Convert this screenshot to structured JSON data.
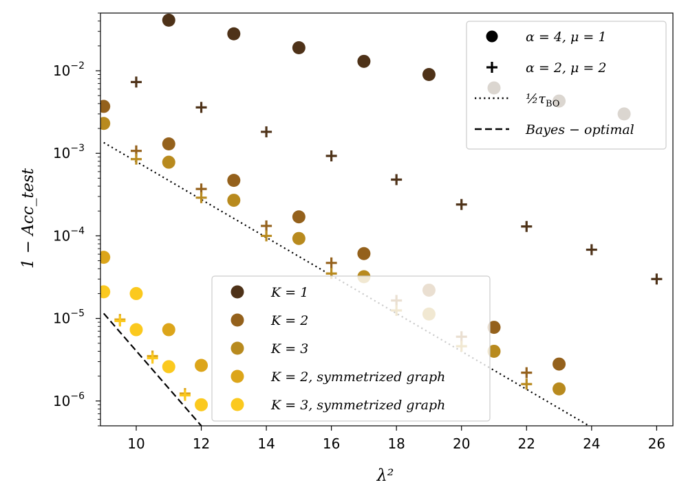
{
  "chart_data": {
    "type": "scatter",
    "title": "",
    "xlabel": "λ²",
    "ylabel": "1 − Acc_test",
    "yscale": "log",
    "xlim": [
      8.9,
      26.5
    ],
    "ylim": [
      5e-07,
      0.05
    ],
    "xticks": [
      10,
      12,
      14,
      16,
      18,
      20,
      22,
      24,
      26
    ],
    "yticks": [
      {
        "value": 1e-06,
        "base": "10",
        "exp": "−6"
      },
      {
        "value": 1e-05,
        "base": "10",
        "exp": "−5"
      },
      {
        "value": 0.0001,
        "base": "10",
        "exp": "−4"
      },
      {
        "value": 0.001,
        "base": "10",
        "exp": "−3"
      },
      {
        "value": 0.01,
        "base": "10",
        "exp": "−2"
      }
    ],
    "colors": {
      "K1": "#4e3218",
      "K2": "#94611c",
      "K3": "#b88a1e",
      "K2sym": "#dca51a",
      "K3sym": "#fbc91e",
      "faded": "#e8dccb",
      "axis": "#000000"
    },
    "series": [
      {
        "name": "K=1, α=4, μ=1",
        "marker": "circle",
        "colorKey": "K1",
        "points": [
          [
            11,
            0.041
          ],
          [
            13,
            0.028
          ],
          [
            15,
            0.019
          ],
          [
            17,
            0.013
          ],
          [
            19,
            0.009
          ],
          [
            21,
            0.0062
          ],
          [
            23,
            0.0043
          ],
          [
            25,
            0.003
          ]
        ]
      },
      {
        "name": "K=1, α=2, μ=2",
        "marker": "plus",
        "colorKey": "K1",
        "points": [
          [
            10,
            0.0073
          ],
          [
            12,
            0.0036
          ],
          [
            14,
            0.00182
          ],
          [
            16,
            0.00093
          ],
          [
            18,
            0.00048
          ],
          [
            20,
            0.00024
          ],
          [
            22,
            0.00013
          ],
          [
            24,
            6.8e-05
          ],
          [
            26,
            3e-05
          ]
        ]
      },
      {
        "name": "K=2, α=4, μ=1",
        "marker": "circle",
        "colorKey": "K2",
        "points": [
          [
            9,
            0.0037
          ],
          [
            11,
            0.0013
          ],
          [
            13,
            0.00047
          ],
          [
            15,
            0.00017
          ],
          [
            17,
            6.1e-05
          ],
          [
            19,
            2.2e-05
          ],
          [
            21,
            7.8e-06
          ],
          [
            23,
            2.8e-06
          ]
        ]
      },
      {
        "name": "K=2, α=2, μ=2",
        "marker": "plus",
        "colorKey": "K2",
        "points": [
          [
            10,
            0.00107
          ],
          [
            12,
            0.00037
          ],
          [
            14,
            0.000132
          ],
          [
            16,
            4.7e-05
          ],
          [
            18,
            1.65e-05
          ],
          [
            20,
            6e-06
          ],
          [
            22,
            2.2e-06
          ]
        ]
      },
      {
        "name": "K=3, α=4, μ=1",
        "marker": "circle",
        "colorKey": "K3",
        "points": [
          [
            9,
            0.0023
          ],
          [
            11,
            0.00078
          ],
          [
            13,
            0.00027
          ],
          [
            15,
            9.3e-05
          ],
          [
            17,
            3.2e-05
          ],
          [
            19,
            1.13e-05
          ],
          [
            21,
            4e-06
          ],
          [
            23,
            1.4e-06
          ]
        ]
      },
      {
        "name": "K=3, α=2, μ=2",
        "marker": "plus",
        "colorKey": "K3",
        "points": [
          [
            10,
            0.00085
          ],
          [
            12,
            0.00029
          ],
          [
            14,
            0.0001
          ],
          [
            16,
            3.5e-05
          ],
          [
            18,
            1.25e-05
          ],
          [
            20,
            4.6e-06
          ],
          [
            22,
            1.6e-06
          ]
        ]
      },
      {
        "name": "K=2, symmetrized graph, α=4, μ=1",
        "marker": "circle",
        "colorKey": "K2sym",
        "points": [
          [
            9,
            5.5e-05
          ],
          [
            11,
            7.3e-06
          ],
          [
            12,
            2.7e-06
          ]
        ]
      },
      {
        "name": "K=2, symmetrized graph, α=2, μ=2",
        "marker": "plus",
        "colorKey": "K2sym",
        "points": [
          [
            9.5,
            9.7e-06
          ],
          [
            10.5,
            3.5e-06
          ],
          [
            11.5,
            1.23e-06
          ]
        ]
      },
      {
        "name": "K=3, symmetrized graph, α=4, μ=1",
        "marker": "circle",
        "colorKey": "K3sym",
        "points": [
          [
            9,
            2.1e-05
          ],
          [
            10,
            2e-05
          ],
          [
            10,
            7.3e-06
          ],
          [
            11,
            2.6e-06
          ],
          [
            12,
            9e-07
          ]
        ]
      },
      {
        "name": "K=3, symmetrized graph, α=2, μ=2",
        "marker": "plus",
        "colorKey": "K3sym",
        "points": [
          [
            9.5,
            9.3e-06
          ],
          [
            10.5,
            3.3e-06
          ],
          [
            11.5,
            1.17e-06
          ]
        ]
      }
    ],
    "lines": [
      {
        "name": "½τ_BO",
        "style": "dotted",
        "points": [
          [
            9,
            0.00135
          ],
          [
            24,
            4.8e-07
          ]
        ]
      },
      {
        "name": "Bayes − optimal",
        "style": "dashed",
        "points": [
          [
            9,
            1.15e-05
          ],
          [
            12,
            5e-07
          ]
        ]
      }
    ],
    "legend_marker": {
      "position": "top-right",
      "entries": [
        {
          "label": "α = 4, μ = 1",
          "marker": "circle"
        },
        {
          "label": "α = 2, μ = 2",
          "marker": "plus"
        },
        {
          "label": "½τ",
          "sub": "BO",
          "marker": "dotted"
        },
        {
          "label": "Bayes − optimal",
          "marker": "dashed"
        }
      ]
    },
    "legend_color": {
      "position": "lower-center",
      "entries": [
        {
          "label": "K = 1",
          "colorKey": "K1"
        },
        {
          "label": "K = 2",
          "colorKey": "K2"
        },
        {
          "label": "K = 3",
          "colorKey": "K3"
        },
        {
          "label": "K = 2, symmetrized graph",
          "colorKey": "K2sym"
        },
        {
          "label": "K = 3, symmetrized graph",
          "colorKey": "K3sym"
        }
      ]
    }
  }
}
